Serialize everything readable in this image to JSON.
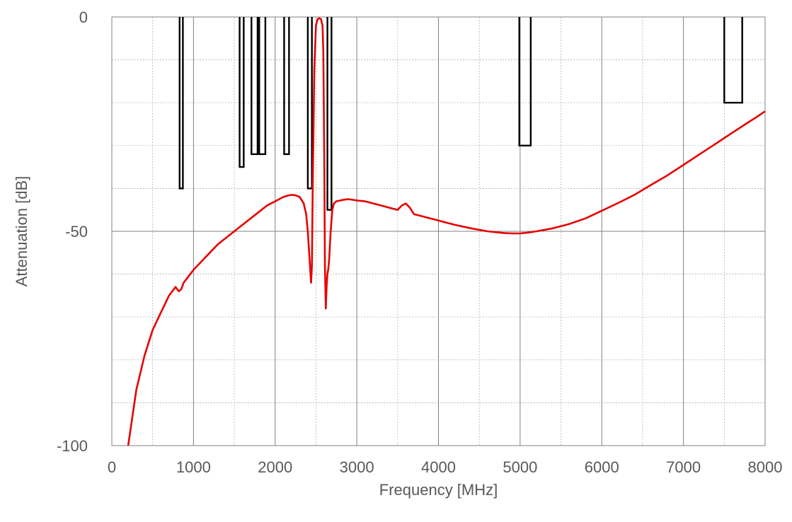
{
  "chart_data": {
    "type": "line",
    "xlabel": "Frequency [MHz]",
    "ylabel": "Attenuation  [dB]",
    "xlim": [
      0,
      8000
    ],
    "ylim": [
      -100,
      0
    ],
    "xticks": [
      0,
      1000,
      2000,
      3000,
      4000,
      5000,
      6000,
      7000,
      8000
    ],
    "yticks": [
      0,
      -50,
      -100
    ],
    "x_minor_step": 500,
    "y_minor_step": 10,
    "grid": true,
    "colors": {
      "curve": "#e60000",
      "mask": "#000000",
      "grid": "#808080"
    },
    "spec_masks": [
      {
        "x_start": 830,
        "x_end": 870,
        "level": -40
      },
      {
        "x_start": 1565,
        "x_end": 1615,
        "level": -35
      },
      {
        "x_start": 1710,
        "x_end": 1785,
        "level": -32
      },
      {
        "x_start": 1805,
        "x_end": 1880,
        "level": -32
      },
      {
        "x_start": 2110,
        "x_end": 2170,
        "level": -32
      },
      {
        "x_start": 2400,
        "x_end": 2450,
        "level": -40
      },
      {
        "x_start": 2640,
        "x_end": 2690,
        "level": -45
      },
      {
        "x_start": 4990,
        "x_end": 5130,
        "level": -30
      },
      {
        "x_start": 7500,
        "x_end": 7720,
        "level": -20
      }
    ],
    "series": [
      {
        "x": [
          200,
          300,
          400,
          500,
          600,
          700,
          780,
          820,
          850,
          880,
          920,
          1000,
          1100,
          1200,
          1300,
          1400,
          1500,
          1600,
          1700,
          1800,
          1900,
          2000,
          2100,
          2150,
          2200,
          2250,
          2300,
          2350,
          2380,
          2400,
          2420,
          2440,
          2450,
          2460,
          2480,
          2500,
          2520,
          2540,
          2560,
          2580,
          2590,
          2600,
          2610,
          2620,
          2630,
          2640,
          2650,
          2660,
          2680,
          2700,
          2720,
          2750,
          2800,
          2850,
          2900,
          3000,
          3100,
          3200,
          3300,
          3400,
          3500,
          3550,
          3600,
          3650,
          3700,
          3800,
          4000,
          4200,
          4400,
          4600,
          4800,
          4900,
          5000,
          5100,
          5200,
          5400,
          5600,
          5800,
          6000,
          6200,
          6400,
          6600,
          6800,
          7000,
          7200,
          7400,
          7600,
          7800,
          7900,
          8000
        ],
        "y": [
          -100,
          -87,
          -79,
          -73,
          -69,
          -65,
          -63,
          -64,
          -63.5,
          -62,
          -61,
          -59,
          -57,
          -55,
          -53,
          -51.5,
          -50,
          -48.5,
          -47,
          -45.5,
          -44,
          -43,
          -42,
          -41.7,
          -41.5,
          -41.6,
          -42,
          -43.5,
          -46,
          -50,
          -56,
          -62,
          -58,
          -40,
          -12,
          -2,
          -0.5,
          -0.3,
          -0.5,
          -2,
          -8,
          -30,
          -58,
          -68,
          -63,
          -60,
          -59,
          -57,
          -50,
          -45,
          -43.5,
          -43,
          -42.8,
          -42.6,
          -42.5,
          -42.8,
          -43,
          -43.5,
          -44,
          -44.5,
          -45,
          -44,
          -43.5,
          -44.5,
          -46,
          -46.5,
          -47.5,
          -48.5,
          -49.3,
          -50,
          -50.4,
          -50.5,
          -50.5,
          -50.3,
          -50,
          -49.3,
          -48.3,
          -47,
          -45.2,
          -43.4,
          -41.5,
          -39.2,
          -37,
          -34.5,
          -32,
          -29.5,
          -27,
          -24.5,
          -23.3,
          -22
        ]
      }
    ]
  }
}
